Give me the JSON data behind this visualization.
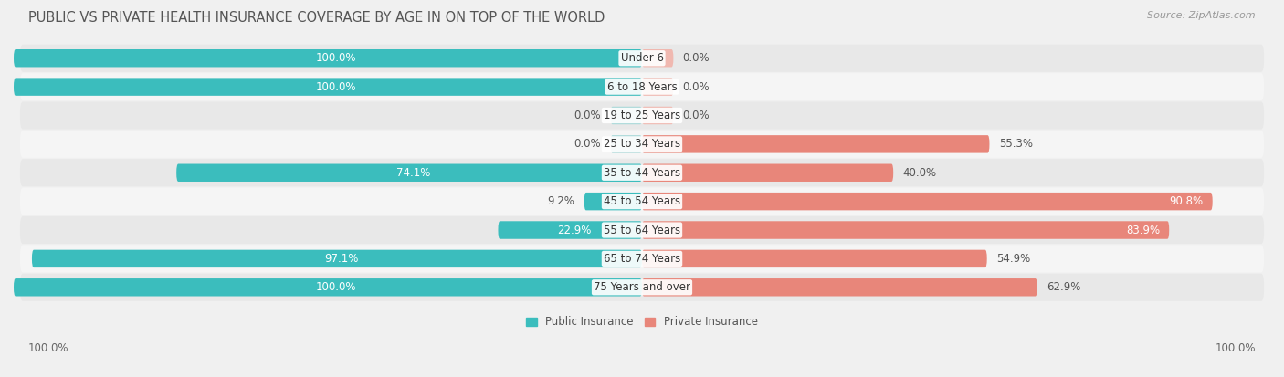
{
  "title": "PUBLIC VS PRIVATE HEALTH INSURANCE COVERAGE BY AGE IN ON TOP OF THE WORLD",
  "source": "Source: ZipAtlas.com",
  "categories": [
    "Under 6",
    "6 to 18 Years",
    "19 to 25 Years",
    "25 to 34 Years",
    "35 to 44 Years",
    "45 to 54 Years",
    "55 to 64 Years",
    "65 to 74 Years",
    "75 Years and over"
  ],
  "public_values": [
    100.0,
    100.0,
    0.0,
    0.0,
    74.1,
    9.2,
    22.9,
    97.1,
    100.0
  ],
  "private_values": [
    0.0,
    0.0,
    0.0,
    55.3,
    40.0,
    90.8,
    83.9,
    54.9,
    62.9
  ],
  "public_color": "#3BBDBD",
  "public_stub_color": "#A8D8D8",
  "private_color": "#E8867A",
  "private_stub_color": "#F0B8B0",
  "background_color": "#f0f0f0",
  "row_bg_even": "#e8e8e8",
  "row_bg_odd": "#f5f5f5",
  "title_fontsize": 10.5,
  "label_fontsize": 8.5,
  "source_fontsize": 8,
  "legend_labels": [
    "Public Insurance",
    "Private Insurance"
  ],
  "bar_height": 0.62,
  "max_value": 100.0,
  "stub_size": 5.0
}
